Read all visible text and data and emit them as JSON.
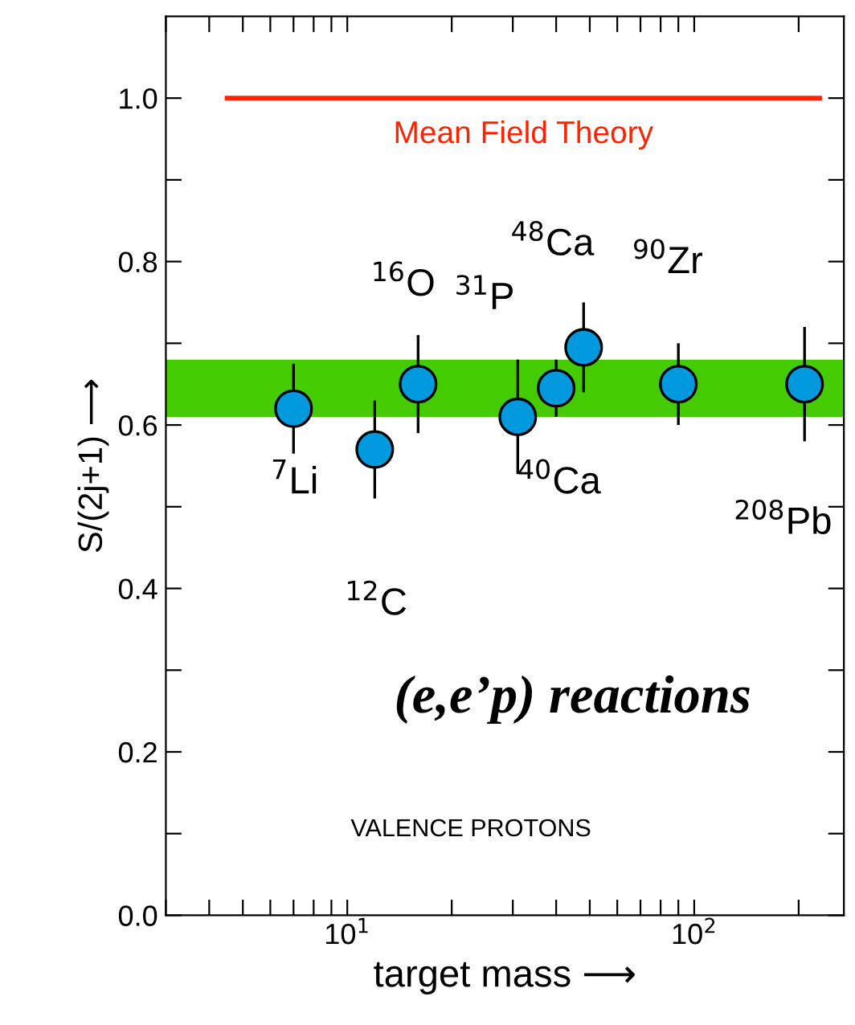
{
  "chart_data": {
    "type": "scatter",
    "xlabel": "target mass ⟶",
    "ylabel": "S/(2j+1) ⟶",
    "log": "x",
    "xlim": [
      3,
      270
    ],
    "ylim": [
      0,
      1.1
    ],
    "xticks": [
      {
        "value": 3,
        "label": null
      },
      {
        "value": 4,
        "label": null
      },
      {
        "value": 5,
        "label": null
      },
      {
        "value": 6,
        "label": null
      },
      {
        "value": 7,
        "label": null
      },
      {
        "value": 8,
        "label": null
      },
      {
        "value": 9,
        "label": null
      },
      {
        "value": 10,
        "label": "10$^{1}$"
      },
      {
        "value": 20,
        "label": null
      },
      {
        "value": 30,
        "label": null
      },
      {
        "value": 40,
        "label": null
      },
      {
        "value": 50,
        "label": null
      },
      {
        "value": 60,
        "label": null
      },
      {
        "value": 70,
        "label": null
      },
      {
        "value": 80,
        "label": null
      },
      {
        "value": 90,
        "label": null
      },
      {
        "value": 100,
        "label": "10$^{2}$"
      },
      {
        "value": 200,
        "label": null
      }
    ],
    "yticks": [
      {
        "value": 0,
        "label": "0.0"
      },
      {
        "value": 0.1,
        "label": null
      },
      0.2,
      {
        "value": 0.3,
        "label": null
      },
      0.4,
      {
        "value": 0.5,
        "label": null
      },
      0.6,
      {
        "value": 0.7,
        "label": null
      },
      0.8,
      {
        "value": 0.9,
        "label": null
      },
      {
        "value": 1,
        "label": "1.0"
      }
    ],
    "grid": false,
    "bands": [
      {
        "axis": "y",
        "from": 0.61,
        "to": 0.68,
        "color": "#44cc00"
      }
    ],
    "series": [
      {
        "name": "Mean Field Theory",
        "type": "line",
        "color": "#ff2200",
        "line_style": "solid",
        "x": [
          4.5,
          230
        ],
        "values": [
          1.0,
          1.0
        ]
      },
      {
        "color": "#0099dd",
        "marker": "circle",
        "x": [
          7,
          12,
          16,
          31,
          40,
          48,
          90,
          208
        ],
        "values": [
          0.62,
          0.57,
          0.65,
          0.61,
          0.645,
          0.695,
          0.65,
          0.65
        ],
        "errors": [
          0.055,
          0.06,
          0.06,
          0.07,
          0.035,
          0.055,
          0.05,
          0.07
        ]
      }
    ],
    "annotations": [
      "$^{7}$Li",
      "$^{12}$C",
      "$^{16}$O",
      "$^{31}$P",
      "$^{40}$Ca",
      "$^{48}$Ca",
      "$^{90}$Zr",
      "$^{208}$Pb",
      "(e,e’p) reactions",
      "VALENCE PROTONS"
    ]
  }
}
